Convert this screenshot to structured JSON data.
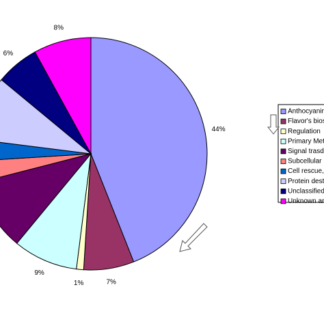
{
  "chart_data": {
    "type": "pie",
    "categories": [
      "Anthocyanin",
      "Flavor's bios",
      "Regulation",
      "Primary Met",
      "Signal trasd",
      "Subcellular",
      "Cell rescue,",
      "Protein dest",
      "Unclassified",
      "Unknown ar"
    ],
    "values": [
      44,
      7,
      1,
      9,
      10,
      3,
      3,
      9,
      6,
      8
    ],
    "value_labels": [
      "44%",
      "7%",
      "1%",
      "9%",
      null,
      null,
      null,
      null,
      "6%",
      "8%"
    ],
    "colors": [
      "#9999ff",
      "#993366",
      "#ffffcc",
      "#ccffff",
      "#660066",
      "#ff8080",
      "#0066cc",
      "#ccccff",
      "#000080",
      "#ff00ff"
    ]
  }
}
